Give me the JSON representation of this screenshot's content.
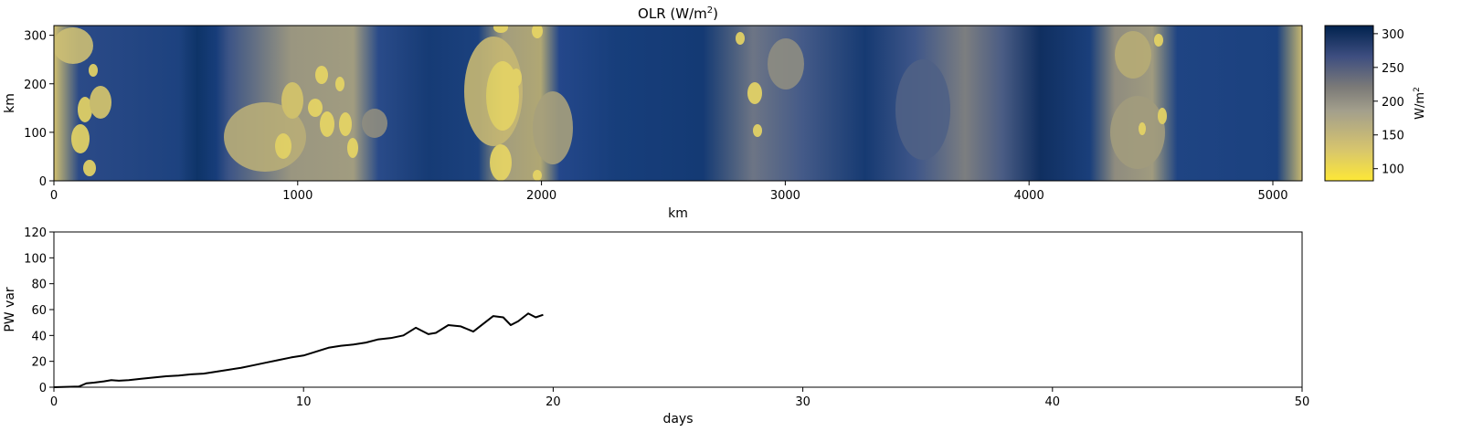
{
  "chart_data": [
    {
      "type": "heatmap",
      "title": "OLR (W/m",
      "title_sup": "2",
      "title_end": ")",
      "xlabel": "km",
      "ylabel": "km",
      "xlim": [
        0,
        5120
      ],
      "ylim": [
        0,
        320
      ],
      "xticks": [
        0,
        1000,
        2000,
        3000,
        4000,
        5000
      ],
      "yticks": [
        0,
        100,
        200,
        300
      ],
      "colormap": "cividis_r",
      "colors": {
        "low": "#fde737",
        "mid": "#7c7b78",
        "high": "#00224e",
        "field": "#173d7a"
      },
      "colorbar": {
        "label": "W/m",
        "label_sup": "2",
        "range": [
          82,
          312
        ],
        "ticks": [
          100,
          150,
          200,
          250,
          300
        ]
      }
    },
    {
      "type": "line",
      "xlabel": "days",
      "ylabel": "PW var",
      "xlim": [
        0,
        50
      ],
      "ylim": [
        0,
        120
      ],
      "xticks": [
        0,
        10,
        20,
        30,
        40,
        50
      ],
      "yticks": [
        0,
        20,
        40,
        60,
        80,
        100,
        120
      ],
      "line_color": "#000000",
      "series": [
        {
          "x": [
            0,
            1,
            1.3,
            1.6,
            2,
            2.3,
            2.6,
            3,
            3.5,
            4,
            4.5,
            5,
            5.5,
            6,
            6.5,
            7,
            7.5,
            8,
            8.5,
            9,
            9.5,
            10,
            10.5,
            11,
            11.5,
            12,
            12.5,
            13,
            13.5,
            14,
            14.5,
            15,
            15.3,
            15.8,
            16.3,
            16.8,
            17.2,
            17.6,
            18,
            18.3,
            18.6,
            19,
            19.3,
            19.6
          ],
          "y": [
            0,
            0.5,
            3,
            3.5,
            4.5,
            5.5,
            5,
            5.5,
            6.5,
            7.5,
            8.5,
            9,
            10,
            10.5,
            12,
            13.5,
            15,
            17,
            19,
            21,
            23,
            24.5,
            27.5,
            30.5,
            32,
            33,
            34.5,
            37,
            38,
            40,
            46,
            41,
            42,
            48,
            47,
            43,
            49,
            55,
            54,
            48,
            51,
            57,
            54,
            56
          ]
        }
      ]
    }
  ]
}
